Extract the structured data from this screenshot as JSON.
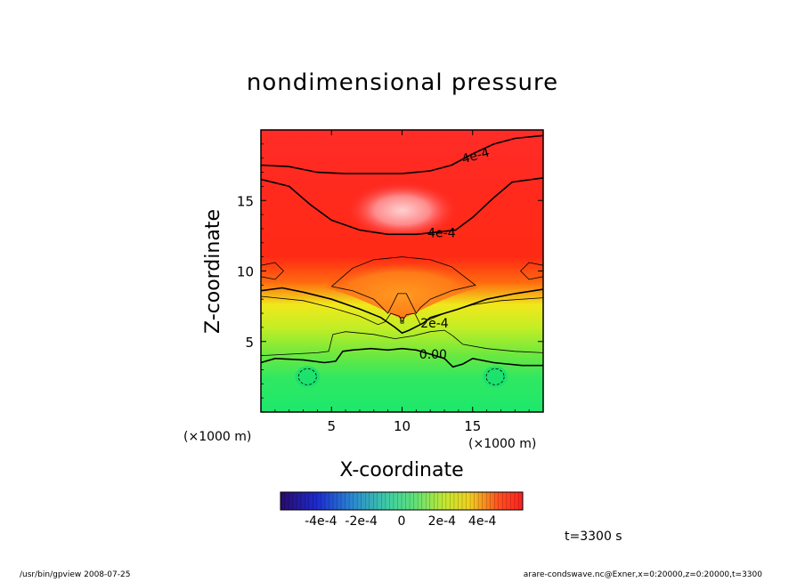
{
  "chart_data": {
    "type": "heatmap",
    "title": "nondimensional pressure",
    "xlabel": "X-coordinate",
    "ylabel": "Z-coordinate",
    "x_unit_labels": [
      "(×1000 m)",
      "(×1000 m)"
    ],
    "xlim": [
      0,
      20
    ],
    "ylim": [
      0,
      20
    ],
    "x_ticks": [
      5,
      10,
      15
    ],
    "x_tick_labels": [
      "5",
      "10",
      "15"
    ],
    "y_ticks": [
      5,
      10,
      15
    ],
    "y_tick_labels": [
      "5",
      "10",
      "15"
    ],
    "contour_labels": [
      {
        "text": "4e-4",
        "x": 15.2,
        "z": 18.2
      },
      {
        "text": "4e-4",
        "x": 12.8,
        "z": 12.7
      },
      {
        "text": "2e-4",
        "x": 12.3,
        "z": 6.3
      },
      {
        "text": "0.00",
        "x": 12.2,
        "z": 4.1
      }
    ],
    "colorbar": {
      "range": [
        -0.0006,
        0.0006
      ],
      "tick_labels": [
        "-4e-4",
        "-2e-4",
        "0",
        "2e-4",
        "4e-4"
      ],
      "tick_values": [
        -0.0004,
        -0.0002,
        0,
        0.0002,
        0.0004
      ]
    },
    "colors": {
      "low": "#2a0a6b",
      "mid_low": "#2a8ad0",
      "zero": "#5ee07a",
      "mid_high": "#e8e838",
      "high": "#ff2020"
    }
  },
  "annotations": {
    "time": "t=3300 s",
    "footer_left": "/usr/bin/gpview   2008-07-25",
    "footer_right": "arare-condswave.nc@Exner,x=0:20000,z=0:20000,t=3300"
  }
}
